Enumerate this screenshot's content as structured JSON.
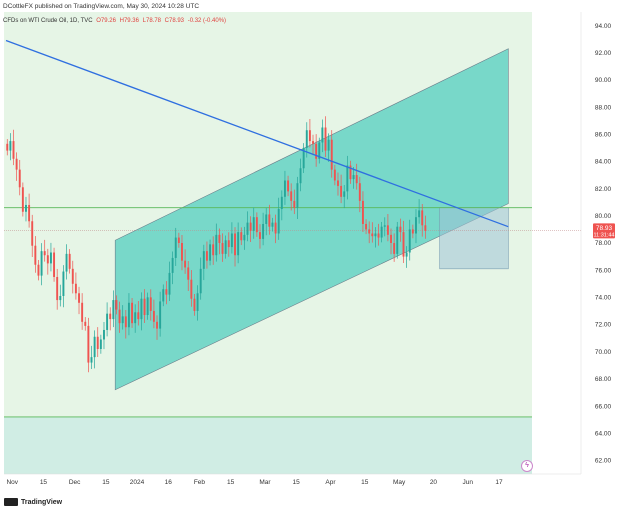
{
  "header": {
    "published": "DCottleFX published on TradingView.com, May 30, 2024 10:28 UTC"
  },
  "legend": {
    "symbol": "CFDs on WTI Crude Oil, 1D, TVC",
    "open": "O79.26",
    "high": "H79.36",
    "low": "L78.78",
    "close": "C78.93",
    "change": "-0.32 (-0.40%)"
  },
  "brand": {
    "name": "TradingView"
  },
  "price_tag": {
    "price": "78.93",
    "countdown": "11:31:44"
  },
  "colors": {
    "up": "#26a69a",
    "down": "#ef5350",
    "trendline": "#2f6fe0",
    "channel_fill": "#2ec4b6",
    "background_zone": "#e6f5e6",
    "lower_zone": "#d0ede4",
    "price_tag": "#ef5350"
  },
  "chart_data": {
    "type": "candlestick",
    "title": "",
    "xlabel": "",
    "ylabel": "",
    "ylim": [
      61,
      95
    ],
    "y_ticks": [
      62,
      64,
      66,
      68,
      70,
      72,
      74,
      76,
      78,
      80,
      82,
      84,
      86,
      88,
      90,
      92,
      94
    ],
    "x_ticks": [
      "Nov",
      "15",
      "Dec",
      "15",
      "2024",
      "16",
      "Feb",
      "15",
      "Mar",
      "15",
      "Apr",
      "15",
      "May",
      "20",
      "Jun",
      "17"
    ],
    "x_tick_bars": [
      2,
      12,
      22,
      32,
      42,
      52,
      62,
      72,
      83,
      93,
      104,
      115,
      126,
      137,
      148,
      158
    ],
    "bars_total": 162,
    "grid": false,
    "legend_position": "top-left",
    "closes": [
      84.8,
      85.5,
      84.2,
      83.4,
      82.1,
      80.3,
      80.8,
      79.6,
      77.8,
      76.4,
      75.6,
      77.4,
      77.1,
      76.5,
      77.3,
      75.5,
      73.8,
      74.1,
      75.9,
      77.2,
      76.1,
      75.0,
      74.3,
      73.6,
      72.2,
      71.9,
      69.2,
      69.6,
      71.1,
      70.2,
      70.9,
      71.6,
      72.8,
      72.4,
      73.8,
      73.1,
      72.1,
      72.6,
      71.8,
      73.6,
      72.1,
      72.9,
      72.4,
      73.9,
      72.7,
      74.0,
      73.0,
      72.2,
      71.7,
      73.7,
      74.6,
      74.2,
      75.8,
      76.9,
      78.4,
      78.0,
      76.7,
      76.2,
      75.3,
      73.9,
      73.0,
      74.3,
      76.1,
      77.4,
      76.7,
      77.9,
      77.1,
      78.6,
      78.0,
      77.2,
      78.2,
      77.7,
      78.7,
      77.1,
      78.8,
      78.2,
      78.6,
      79.5,
      78.9,
      79.9,
      78.8,
      78.3,
      79.4,
      80.1,
      79.2,
      79.5,
      78.7,
      80.5,
      81.4,
      82.6,
      81.8,
      81.1,
      80.6,
      82.4,
      83.5,
      85.0,
      86.3,
      85.5,
      85.3,
      84.2,
      85.4,
      86.5,
      84.8,
      85.6,
      83.4,
      82.6,
      82.2,
      81.4,
      81.8,
      83.7,
      82.7,
      83.0,
      82.4,
      81.1,
      79.4,
      79.0,
      78.7,
      78.5,
      78.7,
      78.4,
      79.2,
      79.3,
      78.6,
      78.0,
      77.2,
      79.2,
      78.8,
      77.0,
      77.3,
      79.0,
      78.7,
      79.9,
      80.4,
      79.3,
      78.9
    ],
    "opens": [
      85.3,
      84.8,
      85.5,
      84.2,
      83.4,
      82.1,
      80.3,
      80.8,
      79.6,
      77.8,
      76.4,
      75.6,
      77.4,
      77.1,
      76.5,
      77.3,
      75.5,
      73.8,
      74.1,
      75.9,
      77.2,
      76.1,
      75.0,
      74.3,
      73.6,
      72.2,
      71.9,
      69.2,
      69.6,
      71.1,
      70.2,
      70.9,
      71.6,
      72.8,
      72.4,
      73.8,
      73.1,
      72.1,
      72.6,
      71.8,
      73.6,
      72.1,
      72.9,
      72.4,
      73.9,
      72.7,
      74.0,
      73.0,
      72.2,
      71.7,
      73.7,
      74.6,
      74.2,
      75.8,
      76.9,
      78.4,
      78.0,
      76.7,
      76.2,
      75.3,
      73.9,
      73.0,
      74.3,
      76.1,
      77.4,
      76.7,
      77.9,
      77.1,
      78.6,
      78.0,
      77.2,
      78.2,
      77.7,
      78.7,
      77.1,
      78.8,
      78.2,
      78.6,
      79.5,
      78.9,
      79.9,
      78.8,
      78.3,
      79.4,
      80.1,
      79.2,
      79.5,
      78.7,
      80.5,
      81.4,
      82.6,
      81.8,
      81.1,
      80.6,
      82.4,
      83.5,
      85.0,
      86.3,
      85.5,
      85.3,
      84.2,
      85.4,
      86.5,
      84.8,
      85.6,
      83.4,
      82.6,
      82.2,
      81.4,
      81.8,
      83.7,
      82.7,
      83.0,
      82.4,
      81.1,
      79.4,
      79.0,
      78.7,
      78.5,
      78.7,
      78.4,
      79.2,
      79.3,
      78.6,
      78.0,
      77.2,
      79.2,
      78.8,
      77.0,
      77.3,
      79.0,
      78.7,
      79.9,
      80.4,
      79.3
    ]
  },
  "annotations": {
    "horizontal_lines": [
      80.6,
      78.93,
      65.2
    ],
    "channel": {
      "x1_bar": 35,
      "x2_bar": 161,
      "lower_start": 67.2,
      "lower_end": 80.9,
      "upper_start": 78.2,
      "upper_end": 92.3
    },
    "trendline": {
      "x1_bar": 0,
      "y1": 92.9,
      "x2_bar": 161,
      "y2": 79.2
    },
    "box": {
      "x1_bar": 139,
      "x2_bar": 161,
      "top": 80.6,
      "bottom": 76.1
    },
    "lower_zone": {
      "top": 65.2,
      "bottom": 61.0
    }
  }
}
